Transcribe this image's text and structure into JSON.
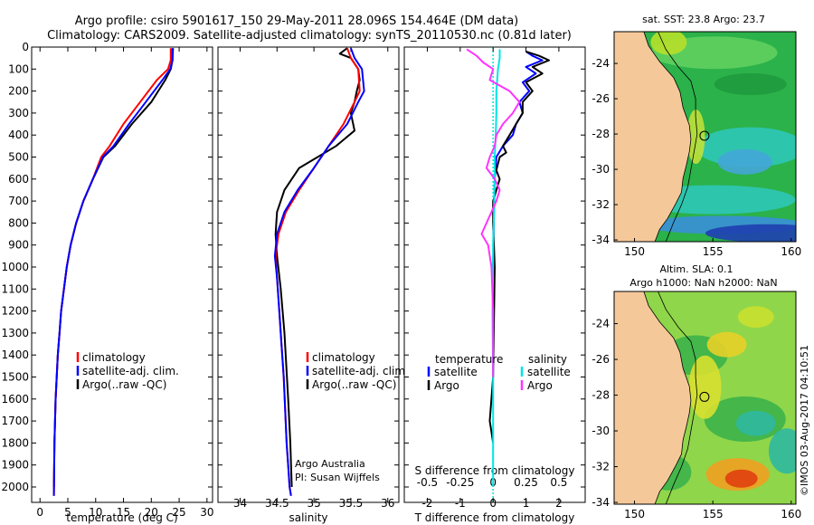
{
  "title": {
    "line1": "Argo profile: csiro 5901617_150 29-May-2011 28.096S 154.464E (DM data)",
    "line2": "Climatology: CARS2009. Satellite-adjusted climatology: synTS_20110530.nc (0.81d later)"
  },
  "watermark": "©IMOS 03-Aug-2017 04:10:51",
  "colors": {
    "climatology": "#ff0000",
    "satellite": "#0000ff",
    "argo": "#000000",
    "satellite_s": "#00e5e5",
    "argo_s": "#ff33ff",
    "land": "#f5c89a"
  },
  "chart_data": [
    {
      "type": "line",
      "name": "temperature-profile",
      "xlabel": "temperature (deg C)",
      "xlim": [
        -1.5,
        31
      ],
      "ylim": [
        2070,
        0
      ],
      "xticks": [
        0,
        5,
        10,
        15,
        20,
        25,
        30
      ],
      "yticks": [
        0,
        100,
        200,
        300,
        400,
        500,
        600,
        700,
        800,
        900,
        1000,
        1100,
        1200,
        1300,
        1400,
        1500,
        1600,
        1700,
        1800,
        1900,
        2000
      ],
      "legend": [
        "climatology",
        "satellite-adj. clim.",
        "Argo(..raw -QC)"
      ],
      "series": [
        {
          "name": "climatology",
          "color": "#ff0000",
          "x": [
            23.5,
            23.5,
            23.0,
            21.0,
            18.0,
            15.0,
            12.5,
            11.0,
            9.5,
            7.8,
            6.5,
            5.5,
            4.8,
            4.3,
            3.8,
            3.5,
            3.2,
            3.0,
            2.8,
            2.6,
            2.5
          ],
          "y": [
            5,
            60,
            100,
            150,
            250,
            350,
            450,
            500,
            600,
            700,
            800,
            900,
            1000,
            1100,
            1200,
            1300,
            1400,
            1500,
            1600,
            1800,
            2040
          ]
        },
        {
          "name": "satellite-adj. clim.",
          "color": "#0000ff",
          "x": [
            23.8,
            23.8,
            23.4,
            22.0,
            19.0,
            16.0,
            13.2,
            11.3,
            9.5,
            7.8,
            6.5,
            5.5,
            4.8,
            4.3,
            3.8,
            3.5,
            3.2,
            3.0,
            2.8,
            2.6,
            2.5
          ],
          "y": [
            5,
            60,
            100,
            150,
            250,
            350,
            450,
            500,
            600,
            700,
            800,
            900,
            1000,
            1100,
            1200,
            1300,
            1400,
            1500,
            1600,
            1800,
            2040
          ]
        },
        {
          "name": "Argo(..raw -QC)",
          "color": "#000000",
          "x": [
            23.9,
            23.8,
            23.5,
            22.5,
            20.0,
            16.5,
            13.5,
            11.4,
            9.5,
            7.8,
            6.5,
            5.5,
            4.8,
            4.3,
            3.8,
            3.5,
            3.2,
            3.0,
            2.8,
            2.6,
            2.5
          ],
          "y": [
            5,
            60,
            100,
            150,
            250,
            350,
            450,
            500,
            600,
            700,
            800,
            900,
            1000,
            1100,
            1200,
            1300,
            1400,
            1500,
            1600,
            1800,
            2000
          ]
        }
      ]
    },
    {
      "type": "line",
      "name": "salinity-profile",
      "xlabel": "salinity",
      "xlim": [
        33.7,
        36.15
      ],
      "ylim": [
        2070,
        0
      ],
      "xticks": [
        34,
        34.5,
        35,
        35.5,
        36
      ],
      "legend": [
        "climatology",
        "satellite-adj. clim.",
        "Argo(..raw -QC)"
      ],
      "annotation": [
        "Argo Australia",
        "PI: Susan Wijffels"
      ],
      "series": [
        {
          "name": "climatology",
          "color": "#ff0000",
          "x": [
            35.45,
            35.5,
            35.6,
            35.62,
            35.55,
            35.4,
            35.2,
            35.0,
            34.8,
            34.62,
            34.52,
            34.48,
            34.5,
            34.53,
            34.56,
            34.59,
            34.61,
            34.63,
            34.65,
            34.67,
            34.69
          ],
          "y": [
            5,
            50,
            100,
            200,
            250,
            350,
            450,
            550,
            650,
            750,
            850,
            950,
            1050,
            1200,
            1350,
            1500,
            1650,
            1800,
            1900,
            2000,
            2040
          ]
        },
        {
          "name": "satellite-adj. clim.",
          "color": "#0000ff",
          "x": [
            35.5,
            35.55,
            35.65,
            35.68,
            35.6,
            35.45,
            35.2,
            35.0,
            34.78,
            34.6,
            34.5,
            34.47,
            34.5,
            34.53,
            34.56,
            34.59,
            34.61,
            34.63,
            34.65,
            34.67,
            34.69
          ],
          "y": [
            5,
            50,
            100,
            200,
            250,
            350,
            450,
            550,
            650,
            750,
            850,
            950,
            1050,
            1200,
            1350,
            1500,
            1650,
            1800,
            1900,
            2000,
            2040
          ]
        },
        {
          "name": "Argo(..raw -QC)",
          "color": "#000000",
          "x": [
            35.45,
            35.35,
            35.5,
            35.6,
            35.62,
            35.58,
            35.55,
            35.5,
            35.55,
            35.3,
            35.05,
            34.8,
            34.6,
            34.5,
            34.48,
            34.5,
            34.55,
            34.6,
            34.65,
            34.68,
            34.7
          ],
          "y": [
            5,
            30,
            50,
            100,
            150,
            200,
            250,
            300,
            380,
            450,
            500,
            550,
            650,
            750,
            850,
            950,
            1100,
            1300,
            1600,
            1800,
            2000
          ]
        }
      ]
    },
    {
      "type": "line",
      "name": "difference-profile",
      "xlabel": "T difference from climatology",
      "xlabel_top": "S difference from climatology",
      "xlim": [
        -2.7,
        2.8
      ],
      "ylim": [
        2070,
        0
      ],
      "xticks": [
        -2,
        -1,
        0,
        1,
        2
      ],
      "xticks_s": [
        {
          "label": "-0.5",
          "value": -2
        },
        {
          "label": "-0.25",
          "value": -1
        },
        {
          "label": "0",
          "value": 0
        },
        {
          "label": "0.25",
          "value": 1
        },
        {
          "label": "0.5",
          "value": 2
        }
      ],
      "legend": {
        "temperature": "temperature",
        "salinity": "salinity",
        "satellite": "satellite",
        "argo": "Argo"
      },
      "series": [
        {
          "name": "T satellite",
          "color": "#0000ff",
          "x": [
            1.0,
            1.2,
            1.5,
            1.0,
            1.3,
            0.9,
            1.1,
            0.8,
            0.9,
            0.7,
            0.6,
            0.3,
            0.1,
            0.05,
            0.02,
            0,
            0
          ],
          "y": [
            20,
            40,
            60,
            90,
            120,
            160,
            200,
            250,
            300,
            350,
            400,
            450,
            500,
            600,
            800,
            1000,
            1200
          ]
        },
        {
          "name": "T Argo",
          "color": "#000000",
          "x": [
            1.0,
            1.4,
            1.7,
            1.2,
            1.5,
            1.0,
            1.2,
            0.9,
            0.9,
            0.7,
            0.5,
            0.3,
            0.4,
            0.2,
            0.15,
            0.1,
            0.2,
            0.1,
            0,
            0,
            0.05,
            0,
            -0.1,
            -0.05,
            0
          ],
          "y": [
            20,
            40,
            60,
            90,
            120,
            160,
            200,
            250,
            300,
            350,
            400,
            450,
            480,
            500,
            530,
            560,
            600,
            650,
            700,
            800,
            1000,
            1500,
            1700,
            1750,
            1800
          ]
        },
        {
          "name": "S satellite",
          "color": "#00e5e5",
          "x": [
            0.2,
            0.2,
            0.15,
            0.1,
            0.1,
            0.08,
            0.05,
            0.05,
            0.03,
            0.02,
            0,
            0,
            -0.02,
            0,
            0
          ],
          "y": [
            10,
            50,
            100,
            200,
            300,
            400,
            500,
            600,
            700,
            800,
            900,
            1000,
            1200,
            1500,
            2000
          ]
        },
        {
          "name": "S Argo",
          "color": "#ff33ff",
          "x": [
            -0.8,
            -0.5,
            -0.3,
            0,
            -0.1,
            0.5,
            0.8,
            0.6,
            0.3,
            0.1,
            0.05,
            -0.1,
            -0.2,
            0.05,
            0.2,
            0.1,
            -0.05,
            -0.2,
            -0.35,
            -0.15,
            -0.05,
            0,
            0
          ],
          "y": [
            10,
            40,
            70,
            100,
            150,
            200,
            250,
            300,
            350,
            400,
            450,
            500,
            550,
            600,
            650,
            700,
            750,
            800,
            850,
            900,
            1000,
            1200,
            1500
          ]
        }
      ]
    },
    {
      "type": "heatmap",
      "name": "sst-map",
      "title": "sat. SST: 23.8 Argo: 23.7",
      "xticks": [
        150,
        155,
        160
      ],
      "yticks": [
        -24,
        -26,
        -28,
        -30,
        -32,
        -34
      ],
      "xlim": [
        148.7,
        160.3
      ],
      "ylim": [
        -34.1,
        -22.2
      ],
      "argo_position": {
        "lon": 154.464,
        "lat": -28.096
      }
    },
    {
      "type": "heatmap",
      "name": "sla-map",
      "title_line1": "Altim. SLA: 0.1",
      "title_line2": "Argo h1000: NaN h2000: NaN",
      "xticks": [
        150,
        155,
        160
      ],
      "yticks": [
        -24,
        -26,
        -28,
        -30,
        -32,
        -34
      ],
      "xlim": [
        148.7,
        160.3
      ],
      "ylim": [
        -34.1,
        -22.2
      ],
      "argo_position": {
        "lon": 154.464,
        "lat": -28.096
      }
    }
  ]
}
